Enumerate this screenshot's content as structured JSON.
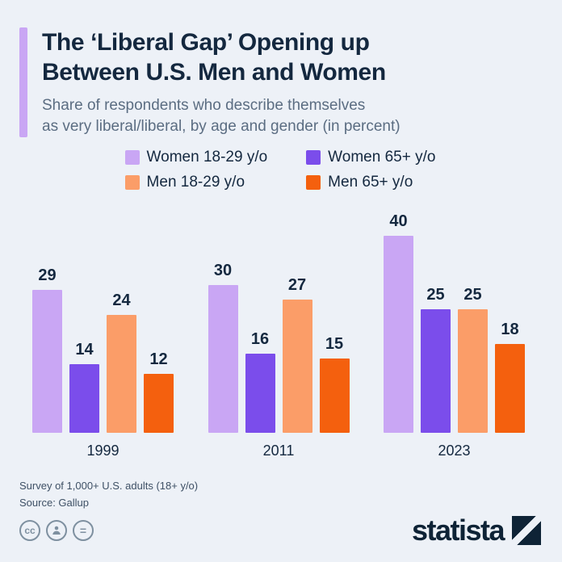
{
  "header": {
    "title_line1": "The ‘Liberal Gap’ Opening up",
    "title_line2": "Between U.S. Men and Women",
    "subtitle_line1": "Share of respondents who describe themselves",
    "subtitle_line2": "as very liberal/liberal, by age and gender (in percent)",
    "accent_color": "#c9a6f4"
  },
  "legend": {
    "items": [
      {
        "label": "Women 18-29 y/o",
        "color": "#c9a6f4"
      },
      {
        "label": "Women 65+ y/o",
        "color": "#7b4deb"
      },
      {
        "label": "Men 18-29 y/o",
        "color": "#fb9d68"
      },
      {
        "label": "Men 65+ y/o",
        "color": "#f4600e"
      }
    ]
  },
  "chart_data": {
    "type": "bar",
    "title": "The ‘Liberal Gap’ Opening up Between U.S. Men and Women",
    "subtitle": "Share of respondents who describe themselves as very liberal/liberal, by age and gender (in percent)",
    "categories": [
      "1999",
      "2011",
      "2023"
    ],
    "series": [
      {
        "name": "Women 18-29 y/o",
        "color": "#c9a6f4",
        "values": [
          29,
          30,
          40
        ]
      },
      {
        "name": "Women 65+ y/o",
        "color": "#7b4deb",
        "values": [
          14,
          16,
          25
        ]
      },
      {
        "name": "Men 18-29 y/o",
        "color": "#fb9d68",
        "values": [
          24,
          27,
          25
        ]
      },
      {
        "name": "Men 65+ y/o",
        "color": "#f4600e",
        "values": [
          12,
          15,
          18
        ]
      }
    ],
    "ylim": [
      0,
      40
    ],
    "grid": false,
    "value_labels": true,
    "legend_position": "top",
    "xlabel": "",
    "ylabel": ""
  },
  "footnotes": {
    "line1": "Survey of 1,000+ U.S. adults (18+ y/o)",
    "line2": "Source: Gallup"
  },
  "branding": {
    "logo_text": "statista",
    "license_cc_label": "cc",
    "license_equal_label": "="
  }
}
